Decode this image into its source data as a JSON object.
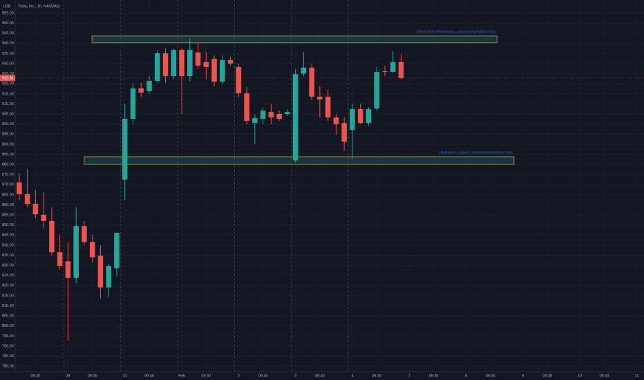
{
  "chart_data": {
    "type": "candlestick",
    "title": "Tesla, Inc., 1h, NASDAQ",
    "currency": "USD",
    "categories": [
      null,
      null,
      null,
      null,
      null,
      null,
      null,
      null,
      null,
      null,
      null,
      null,
      null,
      null,
      null,
      null,
      null,
      null,
      null,
      null,
      null,
      null,
      null,
      null,
      null,
      null,
      null,
      null,
      null,
      null,
      null,
      null,
      null,
      null,
      null,
      null,
      null,
      null,
      null,
      null,
      null,
      null,
      null,
      null,
      null,
      null,
      null,
      null
    ],
    "open": [
      871.1,
      865.3,
      860.5,
      855,
      852,
      836.5,
      832,
      823.8,
      849.5,
      841.6,
      834.8,
      819,
      828.6,
      872.5,
      902.6,
      917.7,
      916.3,
      921.4,
      935.1,
      923.8,
      936.8,
      923.8,
      935.5,
      930.7,
      932.4,
      921,
      931.7,
      928.3,
      915.3,
      900.5,
      902.6,
      906,
      905,
      905,
      882,
      925,
      928,
      913.6,
      913.6,
      903.3,
      900.5,
      897.1,
      907.4,
      900.5,
      907.7,
      926.2,
      925.9,
      930.7
    ],
    "high": [
      875.9,
      877.6,
      867.3,
      866.3,
      858.8,
      845.1,
      841.6,
      858.8,
      851.9,
      845.1,
      839.9,
      831,
      846.4,
      910.1,
      920.4,
      920.4,
      923.8,
      936.8,
      937.5,
      937.5,
      937.5,
      942.7,
      940.3,
      935.8,
      934.1,
      934.1,
      933.4,
      930,
      918.7,
      905,
      908.4,
      910.1,
      906.7,
      907.4,
      927.3,
      935.8,
      930,
      918.7,
      917,
      905,
      903.3,
      910.1,
      910.1,
      908.4,
      928.3,
      929,
      936.2,
      934.8
    ],
    "low": [
      862.2,
      858.8,
      853.6,
      848.5,
      834.8,
      827.9,
      792.7,
      821.1,
      839.9,
      831.4,
      813.6,
      814.2,
      824.5,
      862.2,
      899.9,
      913.6,
      915.3,
      920.4,
      920.4,
      922.1,
      905,
      921.1,
      927.3,
      922.1,
      918.7,
      919.7,
      929,
      913.6,
      899.9,
      890.3,
      899.9,
      899.9,
      901.6,
      904,
      881,
      923.8,
      911.8,
      903.3,
      901.6,
      894.7,
      886.8,
      882.7,
      899.9,
      899.2,
      906.7,
      923.8,
      925.5,
      922.1
    ],
    "close": [
      865.3,
      860.5,
      855.3,
      852,
      836.5,
      829.7,
      823.8,
      849.5,
      841.6,
      834,
      819,
      829.7,
      846.1,
      902.6,
      917.7,
      915.6,
      921.4,
      935.1,
      923.8,
      936.8,
      923.8,
      936.8,
      929,
      928.3,
      921,
      931.7,
      930,
      915.3,
      901.6,
      903,
      906.7,
      903.3,
      902.6,
      906,
      924.8,
      928,
      913.6,
      912.2,
      903.3,
      899.9,
      891.3,
      907.4,
      900.5,
      907.4,
      925.9,
      925.9,
      930.7,
      922.81
    ],
    "up_color": "#26a69a",
    "down_color": "#ef5350",
    "ylim": [
      777.3,
      961.5
    ],
    "yticks": [
      {
        "value": 955,
        "label": "955.00"
      },
      {
        "value": 950,
        "label": "950.00"
      },
      {
        "value": 945,
        "label": "945.00"
      },
      {
        "value": 940,
        "label": "940.00"
      },
      {
        "value": 935,
        "label": "935.00"
      },
      {
        "value": 930,
        "label": "930.00"
      },
      {
        "value": 925,
        "label": "925.00"
      },
      {
        "value": 920,
        "label": "920.00"
      },
      {
        "value": 915,
        "label": "915.00"
      },
      {
        "value": 910,
        "label": "910.00"
      },
      {
        "value": 905,
        "label": "905.00"
      },
      {
        "value": 900,
        "label": "900.00"
      },
      {
        "value": 895,
        "label": "895.00"
      },
      {
        "value": 890,
        "label": "890.00"
      },
      {
        "value": 885,
        "label": "885.00"
      },
      {
        "value": 880,
        "label": "880.00"
      },
      {
        "value": 875,
        "label": "875.00"
      },
      {
        "value": 870,
        "label": "870.00"
      },
      {
        "value": 865,
        "label": "865.00"
      },
      {
        "value": 860,
        "label": "860.00"
      },
      {
        "value": 855,
        "label": "855.00"
      },
      {
        "value": 850,
        "label": "850.00"
      },
      {
        "value": 845,
        "label": "845.00"
      },
      {
        "value": 840,
        "label": "840.00"
      },
      {
        "value": 835,
        "label": "835.00"
      },
      {
        "value": 830,
        "label": "830.00"
      },
      {
        "value": 825,
        "label": "825.00"
      },
      {
        "value": 820,
        "label": "820.00"
      },
      {
        "value": 815,
        "label": "815.00"
      },
      {
        "value": 810,
        "label": "810.00"
      },
      {
        "value": 805,
        "label": "805.00"
      },
      {
        "value": 800,
        "label": "800.00"
      },
      {
        "value": 795,
        "label": "795.00"
      },
      {
        "value": 790,
        "label": "790.00"
      },
      {
        "value": 785,
        "label": "785.00"
      },
      {
        "value": 780,
        "label": "780.00"
      }
    ],
    "xlim": [
      -0.5,
      76.9
    ],
    "xticks": [
      {
        "value": 2,
        "label": "09:30"
      },
      {
        "value": 6,
        "label": "28"
      },
      {
        "value": 9,
        "label": "09:30"
      },
      {
        "value": 13,
        "label": "31"
      },
      {
        "value": 16,
        "label": "09:30"
      },
      {
        "value": 20,
        "label": "Feb"
      },
      {
        "value": 23,
        "label": "09:30"
      },
      {
        "value": 27,
        "label": "2"
      },
      {
        "value": 30,
        "label": "09:30"
      },
      {
        "value": 34,
        "label": "3"
      },
      {
        "value": 37,
        "label": "09:30"
      },
      {
        "value": 41,
        "label": "4"
      },
      {
        "value": 44,
        "label": "09:30"
      },
      {
        "value": 48,
        "label": "7"
      },
      {
        "value": 51,
        "label": "09:30"
      },
      {
        "value": 55,
        "label": "8"
      },
      {
        "value": 58,
        "label": "09:30"
      },
      {
        "value": 62,
        "label": "9"
      },
      {
        "value": 65,
        "label": "09:30"
      },
      {
        "value": 69,
        "label": "10"
      },
      {
        "value": 72,
        "label": "09:30"
      },
      {
        "value": 76,
        "label": "11"
      }
    ],
    "zones": [
      {
        "text": "Short Term Resistance, above long/bullish bias",
        "top": 943.7,
        "bottom": 940.3
      },
      {
        "text": "short term support, below bearish/short bias",
        "top": 883.8,
        "bottom": 880
      }
    ],
    "grid": true
  }
}
